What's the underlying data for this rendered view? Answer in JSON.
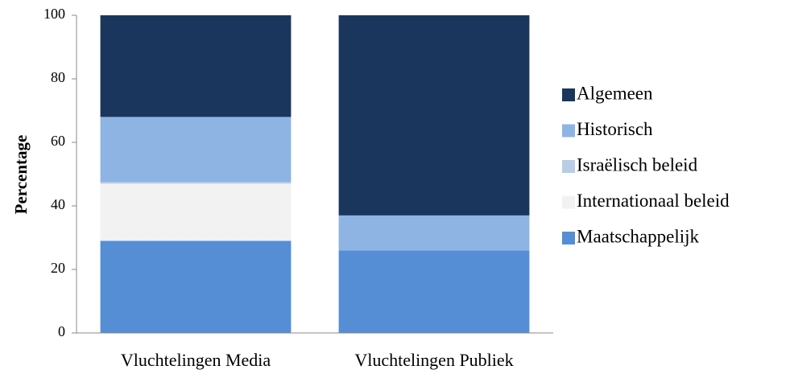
{
  "chart_data": {
    "type": "stacked_bar",
    "y_label": "Percentage",
    "categories": [
      "Vluchtelingen Media",
      "Vluchtelingen Publiek"
    ],
    "series": [
      {
        "name": "Maatschappelijk",
        "color": "#558ed5",
        "values": [
          29,
          26
        ]
      },
      {
        "name": "Internationaal beleid",
        "color": "#f2f2f2",
        "values": [
          18,
          0
        ]
      },
      {
        "name": "Israëlisch beleid",
        "color": "#b9cde5",
        "values": [
          0.5,
          0
        ]
      },
      {
        "name": "Historisch",
        "color": "#8eb4e3",
        "values": [
          20.5,
          11
        ]
      },
      {
        "name": "Algemeen",
        "color": "#1b365d",
        "values": [
          32,
          63
        ]
      }
    ],
    "ylim": [
      0,
      100
    ],
    "yticks": [
      0,
      20,
      40,
      60,
      80,
      100
    ],
    "grid": false,
    "legend": "right"
  }
}
